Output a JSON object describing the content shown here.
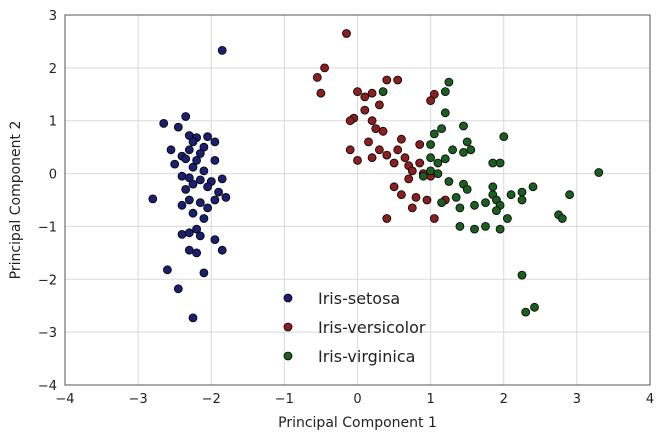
{
  "chart_data": {
    "type": "scatter",
    "title": "",
    "xlabel": "Principal Component 1",
    "ylabel": "Principal Component 2",
    "xlim": [
      -4,
      4
    ],
    "ylim": [
      -4,
      3
    ],
    "xticks": [
      "−4",
      "−3",
      "−2",
      "−1",
      "0",
      "1",
      "2",
      "3",
      "4"
    ],
    "yticks": [
      "3",
      "2",
      "1",
      "0",
      "−1",
      "−2",
      "−3",
      "−4"
    ],
    "grid": true,
    "legend_position": "lower-center",
    "series": [
      {
        "name": "Iris-setosa",
        "color": "#1a1f6e",
        "points": [
          [
            -1.85,
            2.33
          ],
          [
            -2.35,
            1.08
          ],
          [
            -2.65,
            0.95
          ],
          [
            -2.45,
            0.88
          ],
          [
            -2.3,
            0.72
          ],
          [
            -2.2,
            0.68
          ],
          [
            -2.05,
            0.7
          ],
          [
            -2.25,
            0.6
          ],
          [
            -1.95,
            0.6
          ],
          [
            -2.1,
            0.5
          ],
          [
            -2.55,
            0.45
          ],
          [
            -2.3,
            0.45
          ],
          [
            -2.15,
            0.38
          ],
          [
            -2.4,
            0.33
          ],
          [
            -2.35,
            0.28
          ],
          [
            -2.2,
            0.25
          ],
          [
            -1.95,
            0.25
          ],
          [
            -2.5,
            0.18
          ],
          [
            -2.25,
            0.12
          ],
          [
            -2.1,
            0.05
          ],
          [
            -2.4,
            -0.05
          ],
          [
            -2.3,
            -0.08
          ],
          [
            -1.85,
            -0.1
          ],
          [
            -2.15,
            -0.12
          ],
          [
            -2.0,
            -0.15
          ],
          [
            -2.25,
            -0.2
          ],
          [
            -2.05,
            -0.25
          ],
          [
            -2.35,
            -0.3
          ],
          [
            -1.9,
            -0.35
          ],
          [
            -2.8,
            -0.48
          ],
          [
            -1.8,
            -0.45
          ],
          [
            -2.3,
            -0.5
          ],
          [
            -1.95,
            -0.5
          ],
          [
            -2.15,
            -0.55
          ],
          [
            -2.4,
            -0.6
          ],
          [
            -2.05,
            -0.65
          ],
          [
            -2.25,
            -0.75
          ],
          [
            -2.1,
            -0.85
          ],
          [
            -2.2,
            -1.05
          ],
          [
            -2.4,
            -1.15
          ],
          [
            -2.3,
            -1.12
          ],
          [
            -2.15,
            -1.18
          ],
          [
            -1.95,
            -1.25
          ],
          [
            -2.3,
            -1.45
          ],
          [
            -1.85,
            -1.45
          ],
          [
            -2.2,
            -1.5
          ],
          [
            -2.6,
            -1.82
          ],
          [
            -2.1,
            -1.88
          ],
          [
            -2.45,
            -2.18
          ],
          [
            -2.25,
            -2.73
          ]
        ]
      },
      {
        "name": "Iris-versicolor",
        "color": "#8b1e1e",
        "points": [
          [
            -0.15,
            2.65
          ],
          [
            -0.45,
            2.0
          ],
          [
            -0.55,
            1.82
          ],
          [
            -0.5,
            1.52
          ],
          [
            0.4,
            1.77
          ],
          [
            0.55,
            1.77
          ],
          [
            0.0,
            1.55
          ],
          [
            0.2,
            1.52
          ],
          [
            0.1,
            1.45
          ],
          [
            0.3,
            1.3
          ],
          [
            0.1,
            1.2
          ],
          [
            1.05,
            1.5
          ],
          [
            1.0,
            1.38
          ],
          [
            -0.05,
            1.05
          ],
          [
            -0.1,
            1.0
          ],
          [
            0.2,
            1.0
          ],
          [
            0.25,
            0.85
          ],
          [
            0.35,
            0.8
          ],
          [
            0.6,
            0.65
          ],
          [
            0.85,
            0.55
          ],
          [
            0.15,
            0.6
          ],
          [
            0.3,
            0.45
          ],
          [
            0.55,
            0.45
          ],
          [
            -0.1,
            0.45
          ],
          [
            0.4,
            0.35
          ],
          [
            0.2,
            0.3
          ],
          [
            0.0,
            0.25
          ],
          [
            0.65,
            0.3
          ],
          [
            0.5,
            0.2
          ],
          [
            0.7,
            0.15
          ],
          [
            0.75,
            0.05
          ],
          [
            0.85,
            0.2
          ],
          [
            0.9,
            0.0
          ],
          [
            0.7,
            -0.1
          ],
          [
            1.0,
            -0.05
          ],
          [
            0.5,
            -0.25
          ],
          [
            0.6,
            -0.4
          ],
          [
            0.8,
            -0.45
          ],
          [
            0.95,
            -0.5
          ],
          [
            1.2,
            -0.5
          ],
          [
            0.75,
            -0.65
          ],
          [
            0.4,
            -0.85
          ],
          [
            1.05,
            -0.85
          ]
        ]
      },
      {
        "name": "Iris-virginica",
        "color": "#1b5e20",
        "points": [
          [
            1.25,
            1.73
          ],
          [
            1.2,
            1.55
          ],
          [
            0.35,
            1.55
          ],
          [
            1.2,
            1.15
          ],
          [
            1.45,
            0.9
          ],
          [
            1.05,
            0.75
          ],
          [
            1.15,
            0.85
          ],
          [
            1.5,
            0.6
          ],
          [
            1.0,
            0.55
          ],
          [
            2.0,
            0.7
          ],
          [
            1.3,
            0.45
          ],
          [
            1.45,
            0.4
          ],
          [
            1.55,
            0.45
          ],
          [
            1.0,
            0.3
          ],
          [
            1.2,
            0.28
          ],
          [
            1.1,
            0.2
          ],
          [
            1.85,
            0.2
          ],
          [
            1.95,
            0.2
          ],
          [
            1.0,
            0.05
          ],
          [
            1.1,
            0.0
          ],
          [
            0.9,
            -0.05
          ],
          [
            1.25,
            -0.15
          ],
          [
            1.45,
            -0.2
          ],
          [
            1.5,
            -0.3
          ],
          [
            1.85,
            -0.25
          ],
          [
            1.85,
            -0.4
          ],
          [
            2.1,
            -0.4
          ],
          [
            2.25,
            -0.35
          ],
          [
            2.4,
            -0.25
          ],
          [
            1.35,
            -0.45
          ],
          [
            1.15,
            -0.55
          ],
          [
            1.6,
            -0.6
          ],
          [
            1.9,
            -0.5
          ],
          [
            1.95,
            -0.6
          ],
          [
            1.9,
            -0.7
          ],
          [
            2.25,
            -0.5
          ],
          [
            2.9,
            -0.4
          ],
          [
            3.3,
            0.02
          ],
          [
            1.4,
            -1.0
          ],
          [
            1.6,
            -1.05
          ],
          [
            1.75,
            -1.0
          ],
          [
            1.95,
            -1.05
          ],
          [
            2.05,
            -0.85
          ],
          [
            2.75,
            -0.78
          ],
          [
            2.8,
            -0.85
          ],
          [
            1.4,
            -0.65
          ],
          [
            1.75,
            -0.55
          ],
          [
            2.25,
            -1.92
          ],
          [
            2.3,
            -2.62
          ],
          [
            2.42,
            -2.53
          ]
        ]
      }
    ]
  }
}
